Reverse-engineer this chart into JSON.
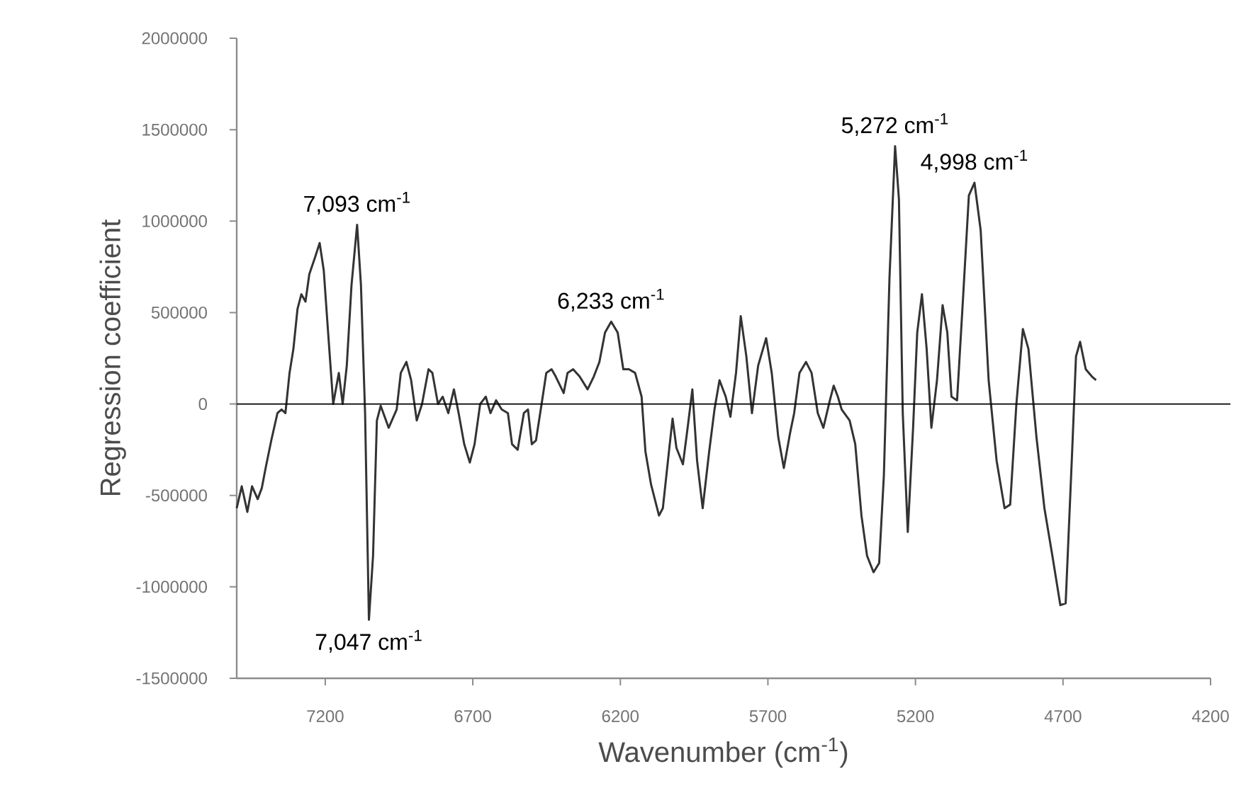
{
  "chart_data": {
    "type": "line",
    "xlabel": "Wavenumber (cm$^{-1}$)",
    "ylabel": "Regression coefficient",
    "xlim": [
      7500,
      4200
    ],
    "xticks": [
      7200,
      6700,
      6200,
      5700,
      5200,
      4700,
      4200
    ],
    "ylim": [
      -1500000,
      2000000
    ],
    "yticks": [
      -1500000,
      -1000000,
      -500000,
      0,
      500000,
      1000000,
      1500000,
      2000000
    ],
    "grid": false,
    "ref_lines": [
      {
        "axis": "y",
        "value": 0,
        "color": "#000000"
      }
    ],
    "annotations": [
      {
        "text": "7,093 cm$^{-1}$",
        "x": 7092,
        "y": 980000
      },
      {
        "text": "7,047 cm$^{-1}$",
        "x": 7052,
        "y": -1180000
      },
      {
        "text": "6,233 cm$^{-1}$",
        "x": 6231,
        "y": 450000
      },
      {
        "text": "5,272 cm$^{-1}$",
        "x": 5269,
        "y": 1410000
      },
      {
        "text": "4,998 cm$^{-1}$",
        "x": 5000,
        "y": 1210000
      }
    ],
    "series": [
      {
        "color": "#333333",
        "x": [
          7500,
          7483,
          7464,
          7448,
          7429,
          7415,
          7402,
          7383,
          7362,
          7348,
          7335,
          7321,
          7308,
          7294,
          7281,
          7267,
          7254,
          7235,
          7219,
          7205,
          7192,
          7173,
          7154,
          7141,
          7127,
          7111,
          7092,
          7079,
          7065,
          7052,
          7038,
          7025,
          7012,
          6985,
          6958,
          6944,
          6925,
          6909,
          6890,
          6872,
          6850,
          6837,
          6818,
          6802,
          6783,
          6764,
          6748,
          6729,
          6710,
          6694,
          6675,
          6656,
          6640,
          6621,
          6602,
          6581,
          6567,
          6548,
          6527,
          6513,
          6500,
          6486,
          6465,
          6451,
          6433,
          6419,
          6392,
          6379,
          6360,
          6338,
          6311,
          6290,
          6271,
          6252,
          6231,
          6209,
          6190,
          6171,
          6150,
          6128,
          6115,
          6096,
          6069,
          6056,
          6034,
          6023,
          6010,
          5988,
          5972,
          5956,
          5940,
          5921,
          5899,
          5881,
          5864,
          5843,
          5827,
          5808,
          5792,
          5773,
          5754,
          5733,
          5706,
          5687,
          5665,
          5646,
          5625,
          5611,
          5593,
          5571,
          5552,
          5531,
          5512,
          5490,
          5477,
          5463,
          5450,
          5423,
          5404,
          5383,
          5364,
          5342,
          5323,
          5307,
          5288,
          5269,
          5256,
          5243,
          5226,
          5208,
          5194,
          5178,
          5162,
          5146,
          5127,
          5108,
          5092,
          5078,
          5059,
          5038,
          5019,
          5000,
          4979,
          4952,
          4925,
          4898,
          4879,
          4858,
          4836,
          4817,
          4790,
          4763,
          4736,
          4709,
          4691,
          4669,
          4656,
          4642,
          4623,
          4602,
          4588
        ],
        "values": [
          -570000,
          -450000,
          -590000,
          -450000,
          -520000,
          -460000,
          -350000,
          -200000,
          -50000,
          -30000,
          -50000,
          170000,
          300000,
          520000,
          600000,
          560000,
          710000,
          800000,
          880000,
          730000,
          430000,
          0,
          170000,
          0,
          210000,
          650000,
          980000,
          650000,
          -50000,
          -1180000,
          -830000,
          -90000,
          -10000,
          -130000,
          -30000,
          170000,
          230000,
          130000,
          -90000,
          0,
          190000,
          170000,
          0,
          40000,
          -50000,
          80000,
          -50000,
          -220000,
          -320000,
          -220000,
          0,
          40000,
          -50000,
          20000,
          -30000,
          -50000,
          -220000,
          -250000,
          -50000,
          -30000,
          -220000,
          -200000,
          20000,
          170000,
          190000,
          150000,
          60000,
          170000,
          190000,
          150000,
          80000,
          150000,
          230000,
          390000,
          450000,
          390000,
          190000,
          190000,
          170000,
          40000,
          -260000,
          -440000,
          -610000,
          -570000,
          -240000,
          -80000,
          -240000,
          -330000,
          -130000,
          80000,
          -310000,
          -570000,
          -260000,
          -30000,
          130000,
          40000,
          -70000,
          170000,
          480000,
          260000,
          -50000,
          210000,
          360000,
          170000,
          -180000,
          -350000,
          -160000,
          -50000,
          170000,
          230000,
          170000,
          -50000,
          -130000,
          20000,
          100000,
          40000,
          -30000,
          -90000,
          -220000,
          -610000,
          -830000,
          -920000,
          -870000,
          -390000,
          690000,
          1410000,
          1120000,
          -50000,
          -700000,
          -130000,
          390000,
          600000,
          300000,
          -130000,
          130000,
          540000,
          390000,
          40000,
          20000,
          600000,
          1140000,
          1210000,
          950000,
          130000,
          -310000,
          -570000,
          -550000,
          0,
          410000,
          300000,
          -180000,
          -570000,
          -830000,
          -1100000,
          -1090000,
          -260000,
          260000,
          340000,
          190000,
          150000,
          130000
        ]
      }
    ]
  }
}
